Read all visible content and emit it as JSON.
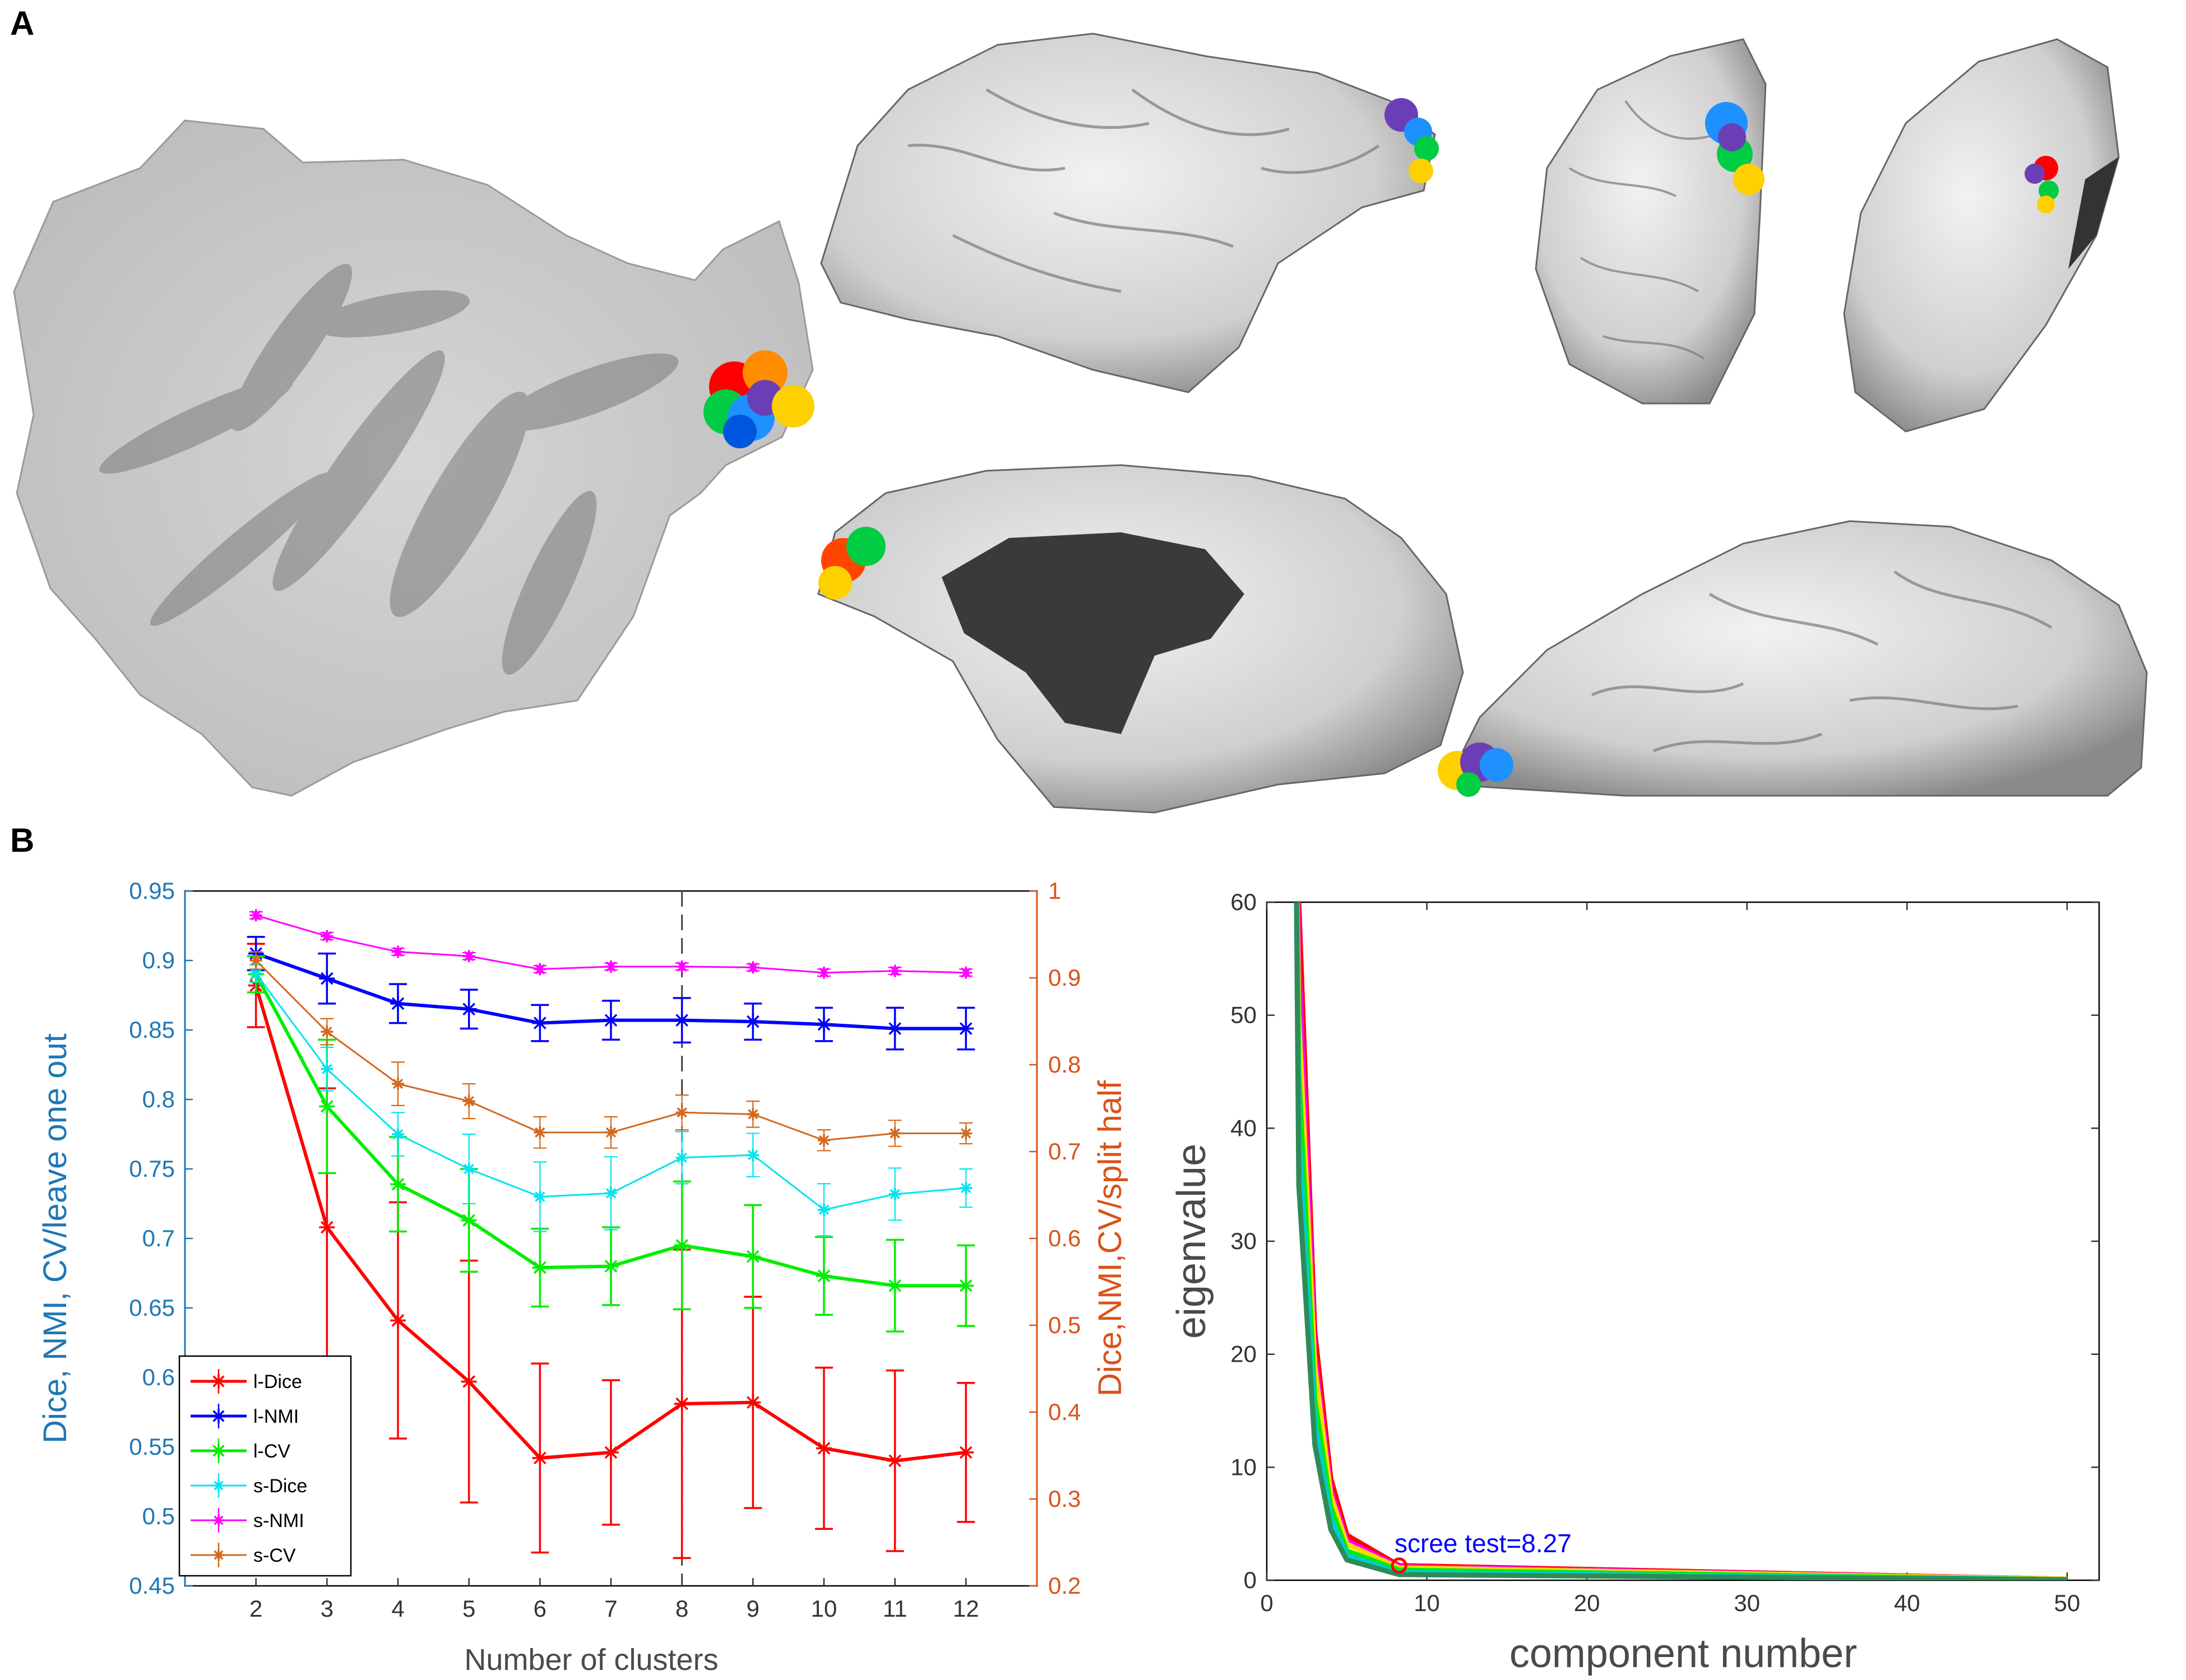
{
  "panels": {
    "a": "A",
    "b": "B"
  },
  "chart_data": [
    {
      "type": "line",
      "xlabel": "Number of clusters",
      "ylabel": "Dice, NMI, CV/leave one out",
      "ylabel_right": "Dice,NMI,CV/split half",
      "x": [
        2,
        3,
        4,
        5,
        6,
        7,
        8,
        9,
        10,
        11,
        12
      ],
      "xlim": [
        1,
        13
      ],
      "ylim": [
        0.45,
        0.95
      ],
      "ylim_right": [
        0.2,
        1.0
      ],
      "yticks": [
        "0.45",
        "0.5",
        "0.55",
        "0.6",
        "0.65",
        "0.7",
        "0.75",
        "0.8",
        "0.85",
        "0.9",
        "0.95"
      ],
      "yticks_right": [
        "0.2",
        "0.3",
        "0.4",
        "0.5",
        "0.6",
        "0.7",
        "0.8",
        "0.9",
        "1"
      ],
      "vline_x": 8,
      "legend_position": "bottom-left",
      "colors": {
        "left_axis": "#1f77b4",
        "right_axis": "#d95319"
      },
      "series": [
        {
          "name": "l-Dice",
          "axis": "left",
          "color": "#ff0000",
          "values": [
            0.882,
            0.708,
            0.641,
            0.597,
            0.542,
            0.546,
            0.581,
            0.582,
            0.549,
            0.54,
            0.546
          ],
          "errors": [
            0.03,
            0.1,
            0.085,
            0.087,
            0.068,
            0.052,
            0.111,
            0.076,
            0.058,
            0.065,
            0.05
          ]
        },
        {
          "name": "l-NMI",
          "axis": "left",
          "color": "#0000ff",
          "values": [
            0.905,
            0.887,
            0.869,
            0.865,
            0.855,
            0.857,
            0.857,
            0.856,
            0.854,
            0.851,
            0.851
          ],
          "errors": [
            0.012,
            0.018,
            0.014,
            0.014,
            0.013,
            0.014,
            0.016,
            0.013,
            0.012,
            0.015,
            0.015
          ]
        },
        {
          "name": "l-CV",
          "axis": "left",
          "color": "#00ee00",
          "values": [
            0.89,
            0.795,
            0.739,
            0.713,
            0.679,
            0.68,
            0.695,
            0.687,
            0.673,
            0.666,
            0.666
          ],
          "errors": [
            0.013,
            0.048,
            0.034,
            0.037,
            0.028,
            0.028,
            0.046,
            0.037,
            0.028,
            0.033,
            0.029
          ]
        },
        {
          "name": "s-Dice",
          "axis": "right",
          "color": "#00e5ee",
          "values": [
            0.905,
            0.795,
            0.72,
            0.68,
            0.648,
            0.652,
            0.693,
            0.696,
            0.633,
            0.651,
            0.658
          ],
          "errors": [
            0.01,
            0.025,
            0.025,
            0.04,
            0.04,
            0.042,
            0.03,
            0.025,
            0.03,
            0.03,
            0.022
          ]
        },
        {
          "name": "s-NMI",
          "axis": "right",
          "color": "#ff00ff",
          "values": [
            0.972,
            0.948,
            0.93,
            0.925,
            0.91,
            0.913,
            0.913,
            0.912,
            0.906,
            0.908,
            0.906
          ],
          "errors": [
            0.004,
            0.004,
            0.004,
            0.004,
            0.004,
            0.004,
            0.004,
            0.004,
            0.004,
            0.004,
            0.004
          ]
        },
        {
          "name": "s-CV",
          "axis": "right",
          "color": "#d2691e",
          "values": [
            0.92,
            0.838,
            0.778,
            0.758,
            0.722,
            0.722,
            0.745,
            0.743,
            0.713,
            0.721,
            0.721
          ],
          "errors": [
            0.01,
            0.015,
            0.025,
            0.02,
            0.018,
            0.018,
            0.02,
            0.015,
            0.012,
            0.015,
            0.012
          ]
        }
      ]
    },
    {
      "type": "line",
      "xlabel": "component number",
      "ylabel": "eigenvalue",
      "xlim": [
        0,
        52
      ],
      "ylim": [
        0,
        60
      ],
      "xticks": [
        "0",
        "10",
        "20",
        "30",
        "40",
        "50"
      ],
      "yticks": [
        "0",
        "10",
        "20",
        "30",
        "40",
        "50",
        "60"
      ],
      "annotation": {
        "text": "scree test=8.27",
        "x": 8.27,
        "y": 1.3,
        "color": "#0000ff"
      },
      "series": [
        {
          "color": "#ff0000",
          "values_at_x": {
            "2": 60,
            "3": 22,
            "4": 9,
            "5": 4,
            "8.27": 1.3,
            "50": 0.1
          }
        },
        {
          "color": "#ff00ff",
          "values_at_x": {
            "2": 55,
            "3": 20,
            "4": 8,
            "5": 3.5,
            "8.27": 1.2,
            "50": 0.1
          }
        },
        {
          "color": "#ffd700",
          "values_at_x": {
            "2": 50,
            "3": 19,
            "4": 7.5,
            "5": 3.2,
            "8.27": 1.1,
            "50": 0.1
          }
        },
        {
          "color": "#00ee00",
          "values_at_x": {
            "2": 45,
            "3": 16,
            "4": 6.5,
            "5": 2.6,
            "8.27": 0.9,
            "50": 0.05
          }
        },
        {
          "color": "#00cccc",
          "values_at_x": {
            "2": 40,
            "3": 14,
            "4": 5.5,
            "5": 2.2,
            "8.27": 0.7,
            "50": 0.05
          }
        },
        {
          "color": "#2e8b57",
          "values_at_x": {
            "2": 35,
            "3": 12,
            "4": 4.5,
            "5": 1.8,
            "8.27": 0.5,
            "50": 0.05
          }
        }
      ]
    }
  ]
}
